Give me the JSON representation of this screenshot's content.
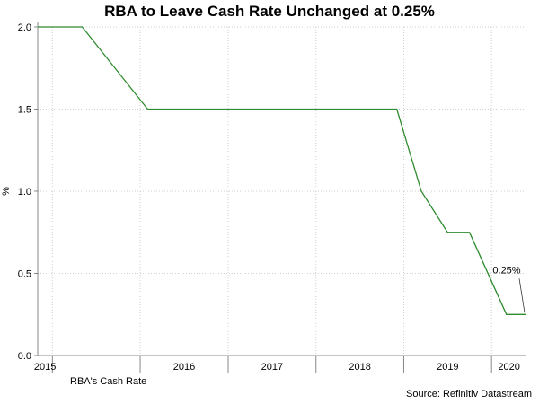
{
  "chart_data": {
    "type": "line",
    "title": "RBA to Leave Cash Rate Unchanged at 0.25%",
    "ylabel": "%",
    "xlabel": "",
    "ylim": [
      0.0,
      2.0
    ],
    "xlim": [
      "2014-11-01",
      "2020-05-25"
    ],
    "yticks": [
      "0.0",
      "0.5",
      "1.0",
      "1.5",
      "2.0"
    ],
    "xticks": [
      {
        "label": "2015",
        "date": "2015-01-01"
      },
      {
        "label": "2016",
        "date": "2016-01-01"
      },
      {
        "label": "2017",
        "date": "2017-01-01"
      },
      {
        "label": "2018",
        "date": "2018-01-01"
      },
      {
        "label": "2019",
        "date": "2019-01-01"
      },
      {
        "label": "2020",
        "date": "2020-01-01"
      }
    ],
    "grid": true,
    "legend_position": "bottom-left",
    "series": [
      {
        "name": "RBA's Cash Rate",
        "color": "#2e8b2e",
        "points": [
          {
            "x": "2014-11-01",
            "y": 2.0
          },
          {
            "x": "2015-05-05",
            "y": 2.0
          },
          {
            "x": "2016-02-01",
            "y": 1.5
          },
          {
            "x": "2018-12-03",
            "y": 1.5
          },
          {
            "x": "2019-03-15",
            "y": 1.0
          },
          {
            "x": "2019-07-02",
            "y": 0.75
          },
          {
            "x": "2019-10-01",
            "y": 0.75
          },
          {
            "x": "2020-03-03",
            "y": 0.25
          },
          {
            "x": "2020-05-25",
            "y": 0.25
          }
        ]
      }
    ],
    "annotations": [
      {
        "text": "0.25%",
        "x": "2020-05-25",
        "y": 0.25
      }
    ]
  },
  "source_text": "Source: Refinitiv Datastream"
}
